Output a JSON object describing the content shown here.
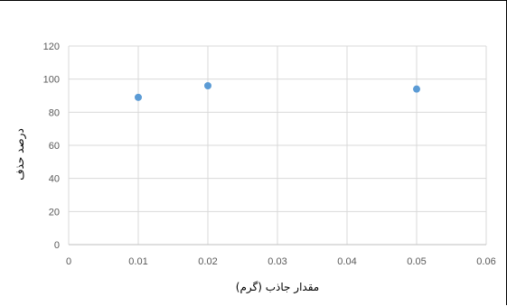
{
  "chart_data": {
    "type": "scatter",
    "title": "",
    "xlabel": "مقدار جاذب (گرم)",
    "ylabel": "درصد حذف",
    "xlim": [
      0,
      0.06
    ],
    "ylim": [
      0,
      120
    ],
    "xticks": [
      "0",
      "0.01",
      "0.02",
      "0.03",
      "0.04",
      "0.05",
      "0.06"
    ],
    "yticks": [
      "0",
      "20",
      "40",
      "60",
      "80",
      "100",
      "120"
    ],
    "grid": true,
    "legend": "none",
    "marker_color": "#5B9BD5",
    "series": [
      {
        "x": [
          0.01,
          0.02,
          0.05
        ],
        "y": [
          89,
          96,
          94
        ]
      }
    ]
  }
}
